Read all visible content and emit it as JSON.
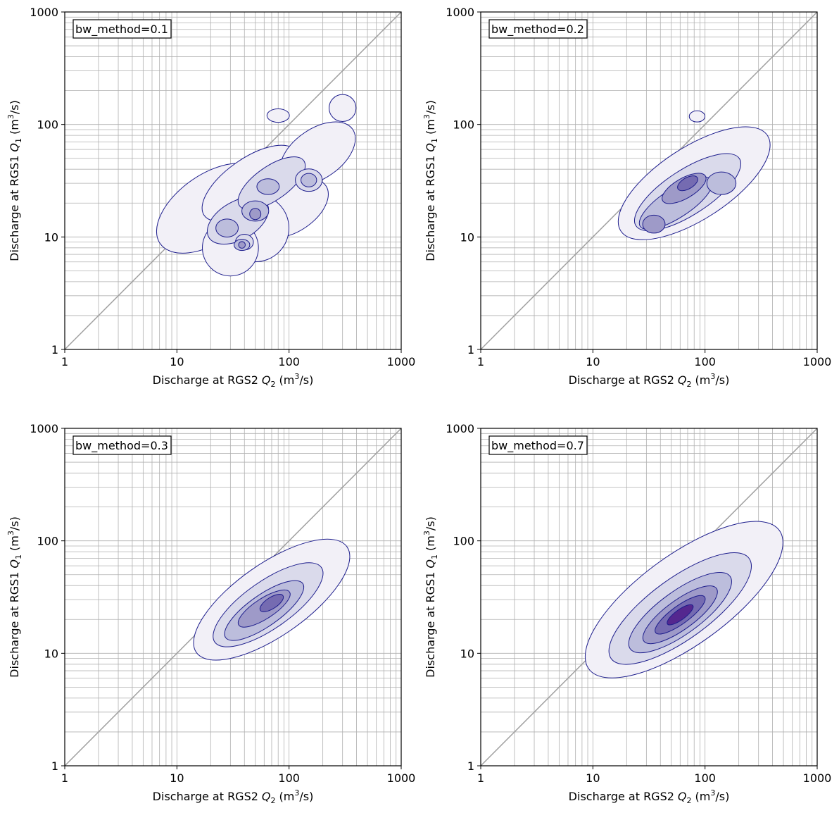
{
  "chart_data": [
    {
      "type": "contour",
      "annotation": "bw_method=0.1",
      "xlabel": "Discharge at RGS2",
      "xlabel_symbol": "Q",
      "xlabel_sub": "2",
      "xlabel_unit_pre": "(m",
      "xlabel_unit_sup": "3",
      "xlabel_unit_post": "/s)",
      "ylabel": "Discharge at RGS1",
      "ylabel_symbol": "Q",
      "ylabel_sub": "1",
      "ylabel_unit_pre": "(m",
      "ylabel_unit_sup": "3",
      "ylabel_unit_post": "/s)",
      "xscale": "log",
      "yscale": "log",
      "xlim": [
        1,
        1000
      ],
      "ylim": [
        1,
        1000
      ],
      "xticks": [
        "1",
        "10",
        "100",
        "1000"
      ],
      "yticks": [
        "1",
        "10",
        "100",
        "1000"
      ],
      "grid": true,
      "reference_line": "y = x",
      "density_levels": [
        {
          "level": 1,
          "islands": [
            [
              20,
              18,
              0.55,
              0.3,
              35
            ],
            [
              45,
              30,
              0.5,
              0.22,
              35
            ],
            [
              180,
              55,
              0.38,
              0.22,
              35
            ],
            [
              110,
              18,
              0.35,
              0.2,
              35
            ],
            [
              50,
              12,
              0.3,
              0.3,
              0
            ],
            [
              30,
              8,
              0.25,
              0.25,
              0
            ],
            [
              300,
              140,
              0.12,
              0.12,
              0
            ],
            [
              80,
              120,
              0.1,
              0.06,
              0
            ]
          ]
        },
        {
          "level": 2,
          "islands": [
            [
              35,
              14,
              0.3,
              0.17,
              30
            ],
            [
              70,
              30,
              0.35,
              0.15,
              35
            ],
            [
              150,
              32,
              0.12,
              0.1,
              0
            ],
            [
              40,
              9,
              0.08,
              0.07,
              0
            ]
          ]
        },
        {
          "level": 3,
          "islands": [
            [
              50,
              17,
              0.12,
              0.09,
              0
            ],
            [
              28,
              12,
              0.1,
              0.08,
              0
            ],
            [
              65,
              28,
              0.1,
              0.07,
              0
            ],
            [
              38,
              8.5,
              0.07,
              0.05,
              0
            ],
            [
              150,
              32,
              0.07,
              0.06,
              0
            ]
          ]
        },
        {
          "level": 4,
          "islands": [
            [
              50,
              16,
              0.05,
              0.05,
              0
            ],
            [
              38,
              8.5,
              0.03,
              0.03,
              0
            ]
          ]
        }
      ]
    },
    {
      "type": "contour",
      "annotation": "bw_method=0.2",
      "xlabel": "Discharge at RGS2",
      "xlabel_symbol": "Q",
      "xlabel_sub": "2",
      "xlabel_unit_pre": "(m",
      "xlabel_unit_sup": "3",
      "xlabel_unit_post": "/s)",
      "ylabel": "Discharge at RGS1",
      "ylabel_symbol": "Q",
      "ylabel_sub": "1",
      "ylabel_unit_pre": "(m",
      "ylabel_unit_sup": "3",
      "ylabel_unit_post": "/s)",
      "xscale": "log",
      "yscale": "log",
      "xlim": [
        1,
        1000
      ],
      "ylim": [
        1,
        1000
      ],
      "xticks": [
        "1",
        "10",
        "100",
        "1000"
      ],
      "yticks": [
        "1",
        "10",
        "100",
        "1000"
      ],
      "grid": true,
      "reference_line": "y = x",
      "density_levels": [
        {
          "level": 1,
          "islands": [
            [
              80,
              30,
              0.78,
              0.32,
              33
            ],
            [
              85,
              118,
              0.07,
              0.05,
              0
            ]
          ]
        },
        {
          "level": 2,
          "islands": [
            [
              70,
              25,
              0.55,
              0.2,
              33
            ]
          ]
        },
        {
          "level": 3,
          "islands": [
            [
              55,
              20,
              0.38,
              0.13,
              33
            ],
            [
              140,
              30,
              0.13,
              0.1,
              0
            ]
          ]
        },
        {
          "level": 4,
          "islands": [
            [
              65,
              27,
              0.22,
              0.09,
              30
            ],
            [
              35,
              13,
              0.1,
              0.08,
              0
            ]
          ]
        },
        {
          "level": 5,
          "islands": [
            [
              70,
              30,
              0.1,
              0.05,
              30
            ]
          ]
        }
      ]
    },
    {
      "type": "contour",
      "annotation": "bw_method=0.3",
      "xlabel": "Discharge at RGS2",
      "xlabel_symbol": "Q",
      "xlabel_sub": "2",
      "xlabel_unit_pre": "(m",
      "xlabel_unit_sup": "3",
      "xlabel_unit_post": "/s)",
      "ylabel": "Discharge at RGS1",
      "ylabel_symbol": "Q",
      "ylabel_sub": "1",
      "ylabel_unit_pre": "(m",
      "ylabel_unit_sup": "3",
      "ylabel_unit_post": "/s)",
      "xscale": "log",
      "yscale": "log",
      "xlim": [
        1,
        1000
      ],
      "ylim": [
        1,
        1000
      ],
      "xticks": [
        "1",
        "10",
        "100",
        "1000"
      ],
      "yticks": [
        "1",
        "10",
        "100",
        "1000"
      ],
      "grid": true,
      "reference_line": "y = x",
      "density_levels": [
        {
          "level": 1,
          "islands": [
            [
              70,
              30,
              0.82,
              0.32,
              35
            ]
          ]
        },
        {
          "level": 2,
          "islands": [
            [
              65,
              27,
              0.58,
              0.21,
              35
            ]
          ]
        },
        {
          "level": 3,
          "islands": [
            [
              60,
              24,
              0.42,
              0.14,
              35
            ]
          ]
        },
        {
          "level": 4,
          "islands": [
            [
              60,
              25,
              0.27,
              0.09,
              33
            ]
          ]
        },
        {
          "level": 5,
          "islands": [
            [
              70,
              28,
              0.12,
              0.05,
              33
            ]
          ]
        }
      ]
    },
    {
      "type": "contour",
      "annotation": "bw_method=0.7",
      "xlabel": "Discharge at RGS2",
      "xlabel_symbol": "Q",
      "xlabel_sub": "2",
      "xlabel_unit_pre": "(m",
      "xlabel_unit_sup": "3",
      "xlabel_unit_post": "/s)",
      "ylabel": "Discharge at RGS1",
      "ylabel_symbol": "Q",
      "ylabel_sub": "1",
      "ylabel_unit_pre": "(m",
      "ylabel_unit_sup": "3",
      "ylabel_unit_post": "/s)",
      "xscale": "log",
      "yscale": "log",
      "xlim": [
        1,
        1000
      ],
      "ylim": [
        1,
        1000
      ],
      "xticks": [
        "1",
        "10",
        "100",
        "1000"
      ],
      "yticks": [
        "1",
        "10",
        "100",
        "1000"
      ],
      "grid": true,
      "reference_line": "y = x",
      "density_levels": [
        {
          "level": 1,
          "islands": [
            [
              65,
              30,
              1.05,
              0.4,
              36
            ]
          ]
        },
        {
          "level": 2,
          "islands": [
            [
              60,
              25,
              0.76,
              0.27,
              36
            ]
          ]
        },
        {
          "level": 3,
          "islands": [
            [
              60,
              23,
              0.55,
              0.19,
              36
            ]
          ]
        },
        {
          "level": 4,
          "islands": [
            [
              60,
              22,
              0.4,
              0.13,
              36
            ]
          ]
        },
        {
          "level": 5,
          "islands": [
            [
              60,
              22,
              0.27,
              0.08,
              36
            ]
          ]
        },
        {
          "level": 6,
          "islands": [
            [
              60,
              22,
              0.14,
              0.045,
              36
            ]
          ]
        }
      ]
    }
  ],
  "colors": {
    "levels": [
      "#f2f0f7",
      "#dadaeb",
      "#bcbddc",
      "#9e9ac8",
      "#756bb1",
      "#54278f"
    ],
    "contour_line": "#1c1c8c",
    "grid": "#b0b0b0",
    "reference_line": "#a0a0a0"
  }
}
